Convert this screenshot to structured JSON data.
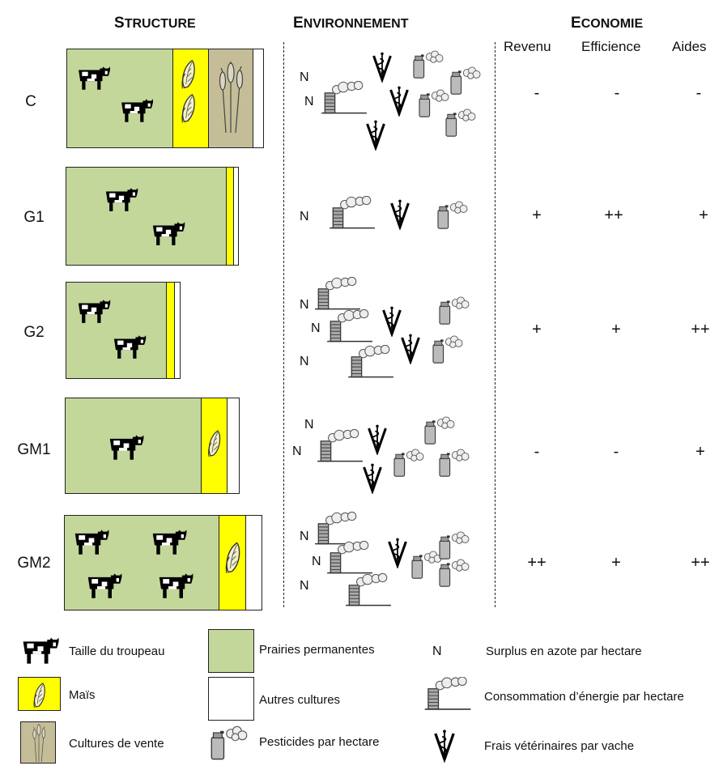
{
  "headers": {
    "structure": "Structure",
    "environnement": "Environnement",
    "economie": "Economie"
  },
  "economie_cols": [
    "Revenu",
    "Efficience",
    "Aides"
  ],
  "rows": [
    {
      "label": "C",
      "revenu": "-",
      "efficience": "-",
      "aides": "-"
    },
    {
      "label": "G1",
      "revenu": "+",
      "efficience": "++",
      "aides": "+"
    },
    {
      "label": "G2",
      "revenu": "+",
      "efficience": "+",
      "aides": "++"
    },
    {
      "label": "GM1",
      "revenu": "-",
      "efficience": "-",
      "aides": "+"
    },
    {
      "label": "GM2",
      "revenu": "++",
      "efficience": "+",
      "aides": "++"
    }
  ],
  "n_symbol": "N",
  "legend": {
    "herd": "Taille du troupeau",
    "maize": "Maïs",
    "cash_crops": "Cultures de vente",
    "grassland": "Prairies permanentes",
    "other_crops": "Autres cultures",
    "pesticides": "Pesticides par hectare",
    "n_label": "N",
    "nitrogen": "Surplus en azote par hectare",
    "energy": "Consommation d’énergie par hectare",
    "vet": "Frais vétérinaires par vache"
  },
  "colors": {
    "grassland": "#c4d79b",
    "maize": "#ffff00",
    "cash_crops": "#c4bd97",
    "other": "#ffffff"
  },
  "icons": [
    "cow-icon",
    "maize-cob-icon",
    "wheat-icon",
    "pesticide-spray-icon",
    "energy-factory-icon",
    "vet-caduceus-icon"
  ]
}
